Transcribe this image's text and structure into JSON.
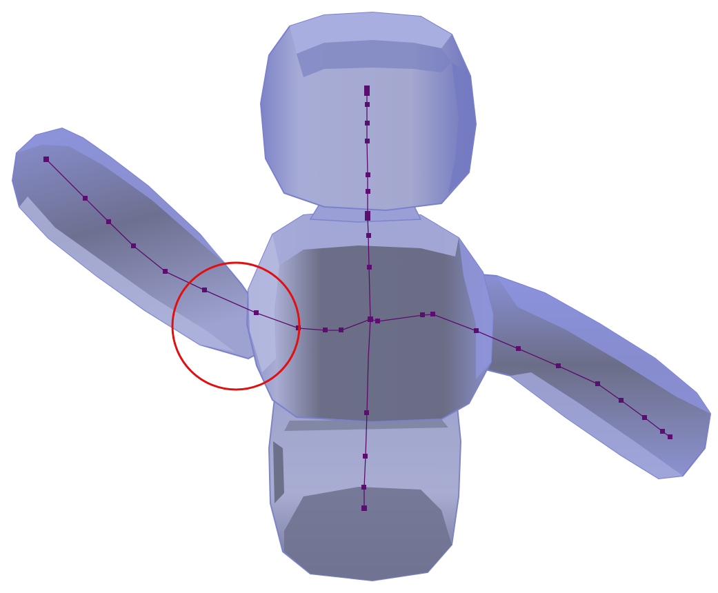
{
  "colors": {
    "background": "#ffffff",
    "mesh_light": "#b7bde8",
    "mesh_mid": "#8c93d4",
    "mesh_edge": "#6f76c9",
    "mesh_dark": "#666a80",
    "skeleton": "#5c0b6a",
    "joint": "#5a0f70",
    "highlight_circle": "#e01010"
  },
  "skeleton": {
    "joint_count": 44,
    "highlight": "shoulder-joint-region"
  }
}
